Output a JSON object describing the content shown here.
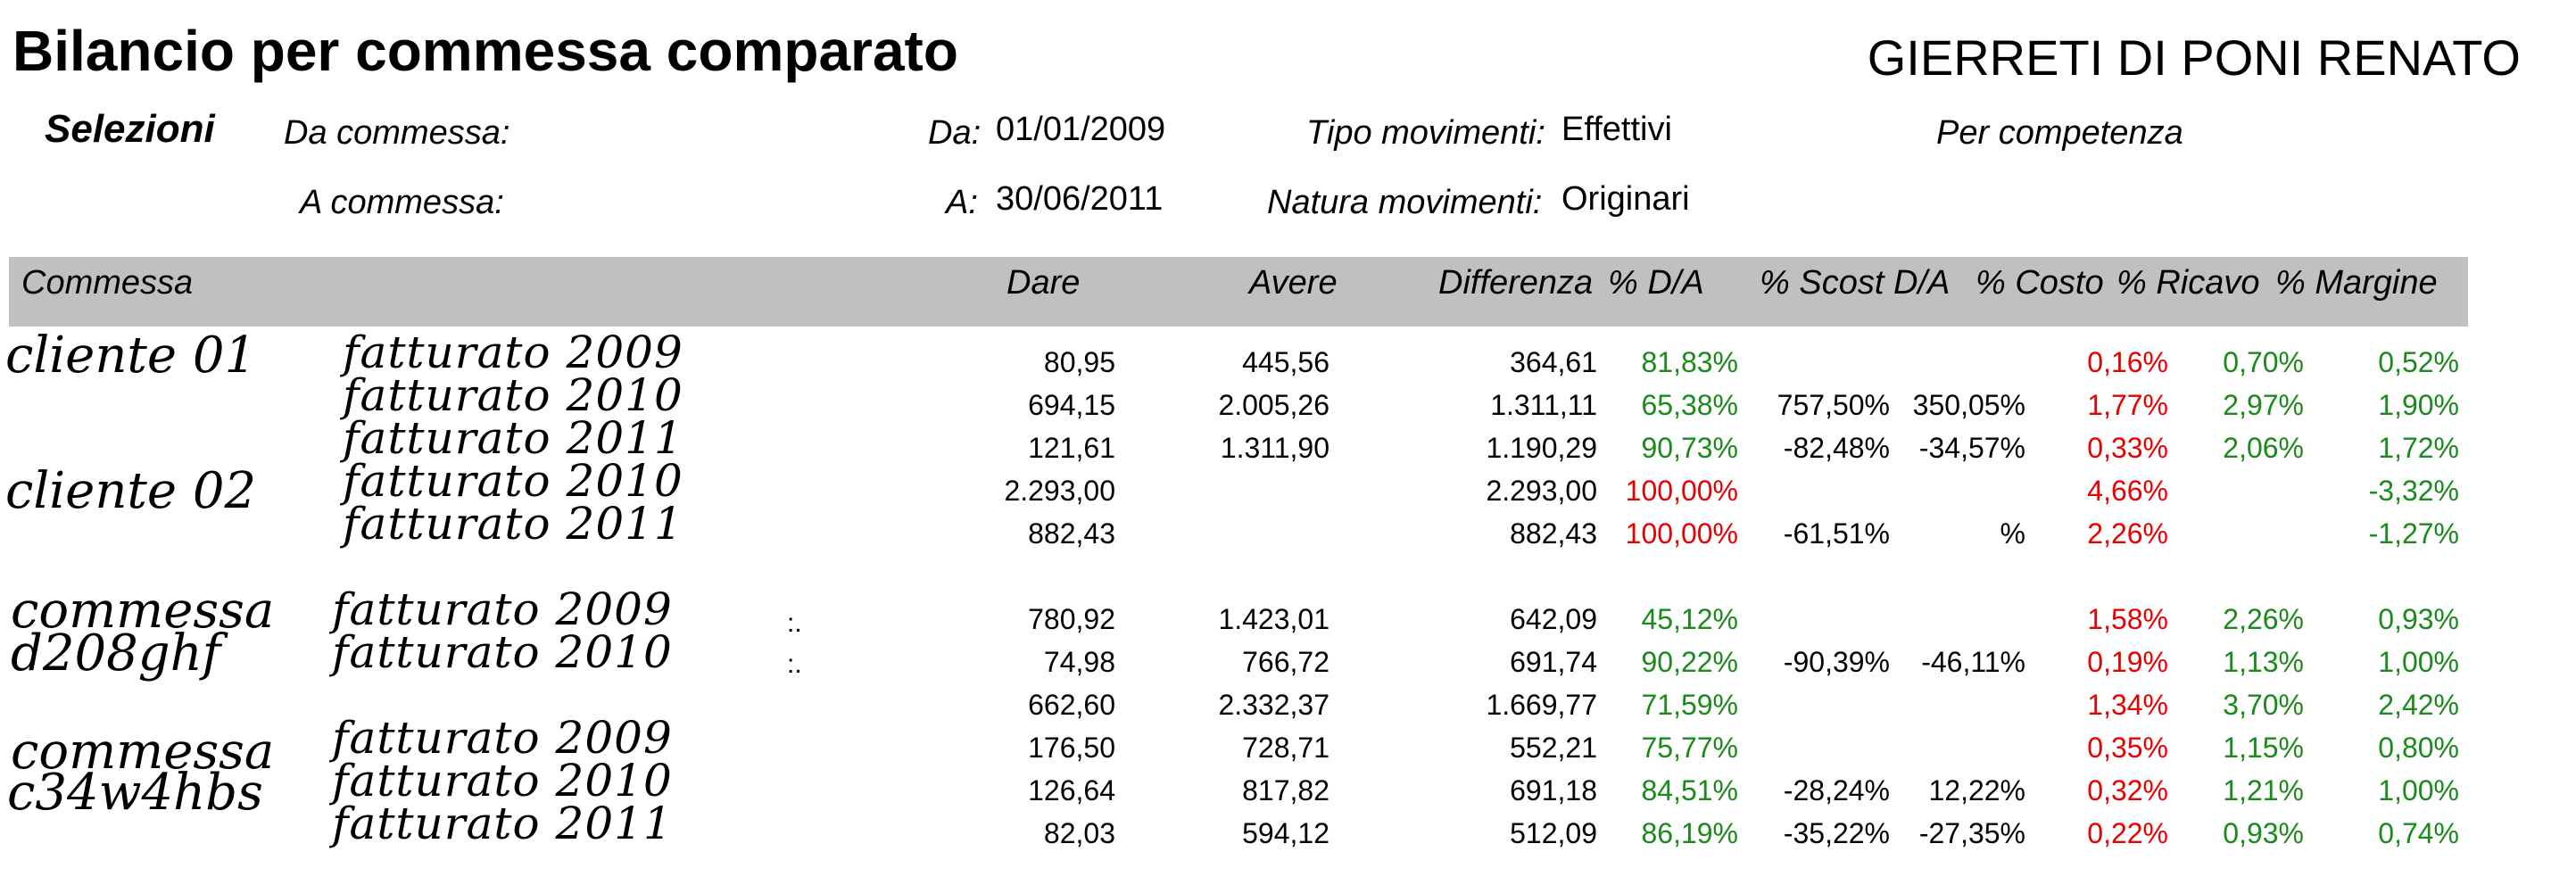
{
  "header": {
    "title": "Bilancio per commessa comparato",
    "company": "GIERRETI DI PONI RENATO"
  },
  "selections": {
    "heading": "Selezioni",
    "da_commessa_label": "Da commessa:",
    "a_commessa_label": "A commessa:",
    "da_label": "Da:",
    "da_value": "01/01/2009",
    "a_label": "A:",
    "a_value": "30/06/2011",
    "tipo_label": "Tipo movimenti:",
    "tipo_value": "Effettivi",
    "natura_label": "Natura movimenti:",
    "natura_value": "Originari",
    "competenza": "Per competenza"
  },
  "columns": {
    "commessa": "Commessa",
    "dare": "Dare",
    "avere": "Avere",
    "differenza": "Differenza",
    "pct_da": "% D/A",
    "pct_scost": "% Scost D/A",
    "pct_costo": "% Costo",
    "pct_ricavo": "% Ricavo",
    "pct_margine": "% Margine"
  },
  "groups": {
    "g1": "cliente 01",
    "g2": "cliente 02",
    "g3a": "commessa",
    "g3b": "d208ghf",
    "g4a": "commessa",
    "g4b": "c34w4hbs"
  },
  "rows": [
    {
      "label": "fatturato 2009",
      "dare": "80,95",
      "avere": "445,56",
      "diff": "364,61",
      "da": "81,83%",
      "scost1": "",
      "scost2": "",
      "costo": "0,16%",
      "ricavo": "0,70%",
      "margine": "0,52%"
    },
    {
      "label": "fatturato 2010",
      "dare": "694,15",
      "avere": "2.005,26",
      "diff": "1.311,11",
      "da": "65,38%",
      "scost1": "757,50%",
      "scost2": "350,05%",
      "costo": "1,77%",
      "ricavo": "2,97%",
      "margine": "1,90%"
    },
    {
      "label": "fatturato 2011",
      "dare": "121,61",
      "avere": "1.311,90",
      "diff": "1.190,29",
      "da": "90,73%",
      "scost1": "-82,48%",
      "scost2": "-34,57%",
      "costo": "0,33%",
      "ricavo": "2,06%",
      "margine": "1,72%"
    },
    {
      "label": "fatturato 2010",
      "dare": "2.293,00",
      "avere": "",
      "diff": "2.293,00",
      "da": "100,00%",
      "scost1": "",
      "scost2": "",
      "costo": "4,66%",
      "ricavo": "",
      "margine": "-3,32%"
    },
    {
      "label": "fatturato 2011",
      "dare": "882,43",
      "avere": "",
      "diff": "882,43",
      "da": "100,00%",
      "scost1": "-61,51%",
      "scost2": "%",
      "costo": "2,26%",
      "ricavo": "",
      "margine": "-1,27%"
    },
    {
      "label": "fatturato 2009",
      "dare": "780,92",
      "avere": "1.423,01",
      "diff": "642,09",
      "da": "45,12%",
      "scost1": "",
      "scost2": "",
      "costo": "1,58%",
      "ricavo": "2,26%",
      "margine": "0,93%"
    },
    {
      "label": "fatturato 2010",
      "dare": "74,98",
      "avere": "766,72",
      "diff": "691,74",
      "da": "90,22%",
      "scost1": "-90,39%",
      "scost2": "-46,11%",
      "costo": "0,19%",
      "ricavo": "1,13%",
      "margine": "1,00%"
    },
    {
      "label": "",
      "dare": "662,60",
      "avere": "2.332,37",
      "diff": "1.669,77",
      "da": "71,59%",
      "scost1": "",
      "scost2": "",
      "costo": "1,34%",
      "ricavo": "3,70%",
      "margine": "2,42%"
    },
    {
      "label": "fatturato 2009",
      "dare": "176,50",
      "avere": "728,71",
      "diff": "552,21",
      "da": "75,77%",
      "scost1": "",
      "scost2": "",
      "costo": "0,35%",
      "ricavo": "1,15%",
      "margine": "0,80%"
    },
    {
      "label": "fatturato 2010",
      "dare": "126,64",
      "avere": "817,82",
      "diff": "691,18",
      "da": "84,51%",
      "scost1": "-28,24%",
      "scost2": "12,22%",
      "costo": "0,32%",
      "ricavo": "1,21%",
      "margine": "1,00%"
    },
    {
      "label": "fatturato 2011",
      "dare": "82,03",
      "avere": "594,12",
      "diff": "512,09",
      "da": "86,19%",
      "scost1": "-35,22%",
      "scost2": "-27,35%",
      "costo": "0,22%",
      "ricavo": "0,93%",
      "margine": "0,74%"
    }
  ],
  "colors": {
    "positive": "#1a8a1a",
    "negative": "#e80000",
    "header_band": "#c0c0c0"
  }
}
